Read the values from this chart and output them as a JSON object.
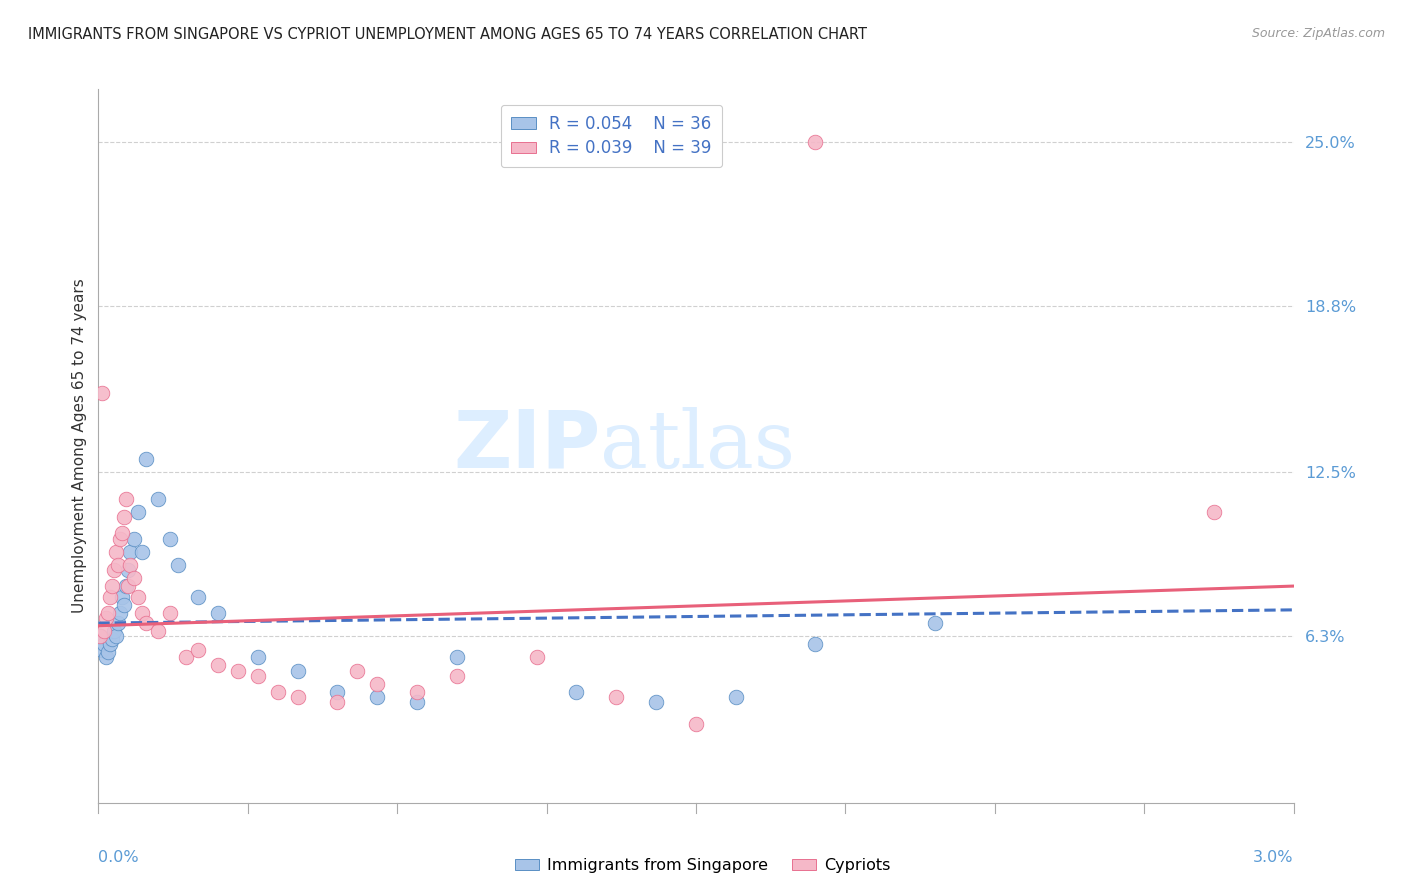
{
  "title": "IMMIGRANTS FROM SINGAPORE VS CYPRIOT UNEMPLOYMENT AMONG AGES 65 TO 74 YEARS CORRELATION CHART",
  "source": "Source: ZipAtlas.com",
  "ylabel": "Unemployment Among Ages 65 to 74 years",
  "xlim": [
    0.0,
    0.03
  ],
  "ylim": [
    0.0,
    0.27
  ],
  "ytick_values": [
    0.063,
    0.125,
    0.188,
    0.25
  ],
  "ytick_labels": [
    "6.3%",
    "12.5%",
    "18.8%",
    "25.0%"
  ],
  "xtick_labels": [
    "0.0%",
    "3.0%"
  ],
  "blue_label": "Immigrants from Singapore",
  "pink_label": "Cypriots",
  "blue_R": "R = 0.054",
  "blue_N": "N = 36",
  "pink_R": "R = 0.039",
  "pink_N": "N = 39",
  "blue_color": "#a8c4e8",
  "pink_color": "#f5b8c8",
  "blue_edge_color": "#5a8fc4",
  "pink_edge_color": "#e87090",
  "blue_line_color": "#4472c4",
  "pink_line_color": "#e8607a",
  "watermark_color": "#ddeeff",
  "grid_color": "#d0d0d0",
  "blue_scatter_x": [
    5e-05,
    0.0001,
    0.00015,
    0.0002,
    0.00025,
    0.0003,
    0.00035,
    0.0004,
    0.00045,
    0.0005,
    0.00055,
    0.0006,
    0.00065,
    0.0007,
    0.00075,
    0.0008,
    0.0009,
    0.001,
    0.0011,
    0.0012,
    0.0015,
    0.0018,
    0.002,
    0.0025,
    0.003,
    0.004,
    0.005,
    0.006,
    0.007,
    0.008,
    0.009,
    0.012,
    0.014,
    0.016,
    0.018,
    0.021
  ],
  "blue_scatter_y": [
    0.063,
    0.058,
    0.06,
    0.055,
    0.057,
    0.06,
    0.062,
    0.065,
    0.063,
    0.068,
    0.072,
    0.078,
    0.075,
    0.082,
    0.088,
    0.095,
    0.1,
    0.11,
    0.095,
    0.13,
    0.115,
    0.1,
    0.09,
    0.078,
    0.072,
    0.055,
    0.05,
    0.042,
    0.04,
    0.038,
    0.055,
    0.042,
    0.038,
    0.04,
    0.06,
    0.068
  ],
  "pink_scatter_x": [
    5e-05,
    0.0001,
    0.00015,
    0.0002,
    0.00025,
    0.0003,
    0.00035,
    0.0004,
    0.00045,
    0.0005,
    0.00055,
    0.0006,
    0.00065,
    0.0007,
    0.00075,
    0.0008,
    0.0009,
    0.001,
    0.0011,
    0.0012,
    0.0015,
    0.0018,
    0.0022,
    0.0025,
    0.003,
    0.0035,
    0.004,
    0.0045,
    0.005,
    0.006,
    0.0065,
    0.007,
    0.008,
    0.009,
    0.011,
    0.013,
    0.015,
    0.018,
    0.028
  ],
  "pink_scatter_y": [
    0.063,
    0.155,
    0.065,
    0.07,
    0.072,
    0.078,
    0.082,
    0.088,
    0.095,
    0.09,
    0.1,
    0.102,
    0.108,
    0.115,
    0.082,
    0.09,
    0.085,
    0.078,
    0.072,
    0.068,
    0.065,
    0.072,
    0.055,
    0.058,
    0.052,
    0.05,
    0.048,
    0.042,
    0.04,
    0.038,
    0.05,
    0.045,
    0.042,
    0.048,
    0.055,
    0.04,
    0.03,
    0.25,
    0.11
  ],
  "blue_trend_x": [
    0.0,
    0.03
  ],
  "blue_trend_y": [
    0.068,
    0.073
  ],
  "pink_trend_x": [
    0.0,
    0.03
  ],
  "pink_trend_y": [
    0.067,
    0.082
  ]
}
